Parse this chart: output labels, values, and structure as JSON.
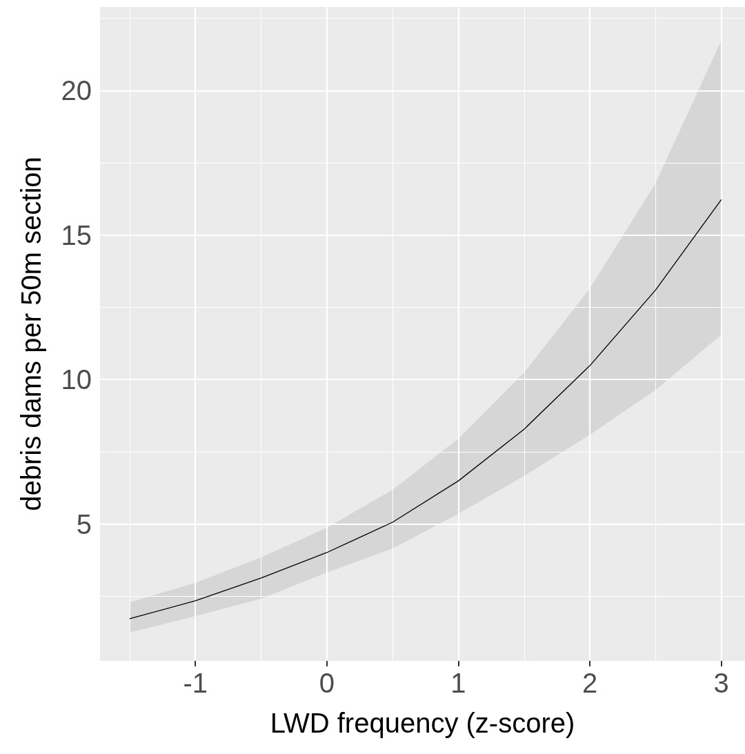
{
  "chart_data": {
    "type": "line",
    "xlabel": "LWD frequency (z-score)",
    "ylabel": "debris dams per 50m section",
    "x": [
      -1.5,
      -1,
      -0.5,
      0,
      0.5,
      1,
      1.5,
      2,
      2.5,
      3
    ],
    "series": [
      {
        "color": "#000000",
        "values": [
          1.72,
          2.34,
          3.13,
          4.01,
          5.06,
          6.49,
          8.28,
          10.48,
          13.1,
          16.23
        ],
        "lower": [
          1.24,
          1.81,
          2.41,
          3.32,
          4.15,
          5.35,
          6.66,
          8.09,
          9.64,
          11.55
        ],
        "upper": [
          2.29,
          2.96,
          3.84,
          4.87,
          6.18,
          7.95,
          10.24,
          13.15,
          16.8,
          21.74
        ]
      }
    ],
    "xlim": [
      -1.725,
      3.18
    ],
    "xticks": [
      -1,
      0,
      1,
      2,
      3
    ],
    "ylim": [
      0.26,
      22.9
    ],
    "yticks": [
      5,
      10,
      15,
      20
    ],
    "grid": true,
    "marker": "none",
    "line_style": "solid"
  }
}
